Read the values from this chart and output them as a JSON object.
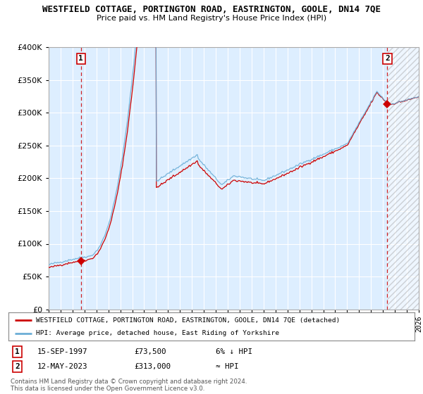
{
  "title": "WESTFIELD COTTAGE, PORTINGTON ROAD, EASTRINGTON, GOOLE, DN14 7QE",
  "subtitle": "Price paid vs. HM Land Registry's House Price Index (HPI)",
  "hpi_line_color": "#6baed6",
  "price_line_color": "#cc0000",
  "marker_color": "#cc0000",
  "vline_color": "#cc0000",
  "legend_label_property": "WESTFIELD COTTAGE, PORTINGTON ROAD, EASTRINGTON, GOOLE, DN14 7QE (detached)",
  "legend_label_hpi": "HPI: Average price, detached house, East Riding of Yorkshire",
  "footer": "Contains HM Land Registry data © Crown copyright and database right 2024.\nThis data is licensed under the Open Government Licence v3.0.",
  "background_color": "#ffffff",
  "plot_bg_color": "#ddeeff",
  "grid_color": "#ffffff",
  "ylim": [
    0,
    400000
  ],
  "yticks": [
    0,
    50000,
    100000,
    150000,
    200000,
    250000,
    300000,
    350000,
    400000
  ],
  "xstart": 1995.0,
  "xend": 2026.0,
  "sale1_year": 1997.708,
  "sale1_price": 73500,
  "sale2_year": 2023.37,
  "sale2_price": 313000
}
